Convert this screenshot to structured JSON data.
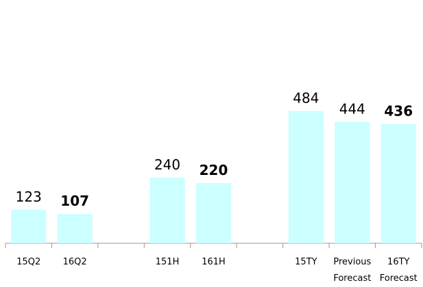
{
  "chart_data": {
    "type": "bar",
    "categories": [
      "15Q2",
      "16Q2",
      null,
      "151H",
      "161H",
      null,
      "15TY",
      "Previous Forecast",
      "16TY Forecast"
    ],
    "values": [
      123,
      107,
      null,
      240,
      220,
      null,
      484,
      444,
      436
    ],
    "bold_value_labels": [
      false,
      true,
      false,
      false,
      true,
      false,
      false,
      false,
      true
    ],
    "color": "#ccffff",
    "ylim": [
      0,
      890
    ]
  }
}
